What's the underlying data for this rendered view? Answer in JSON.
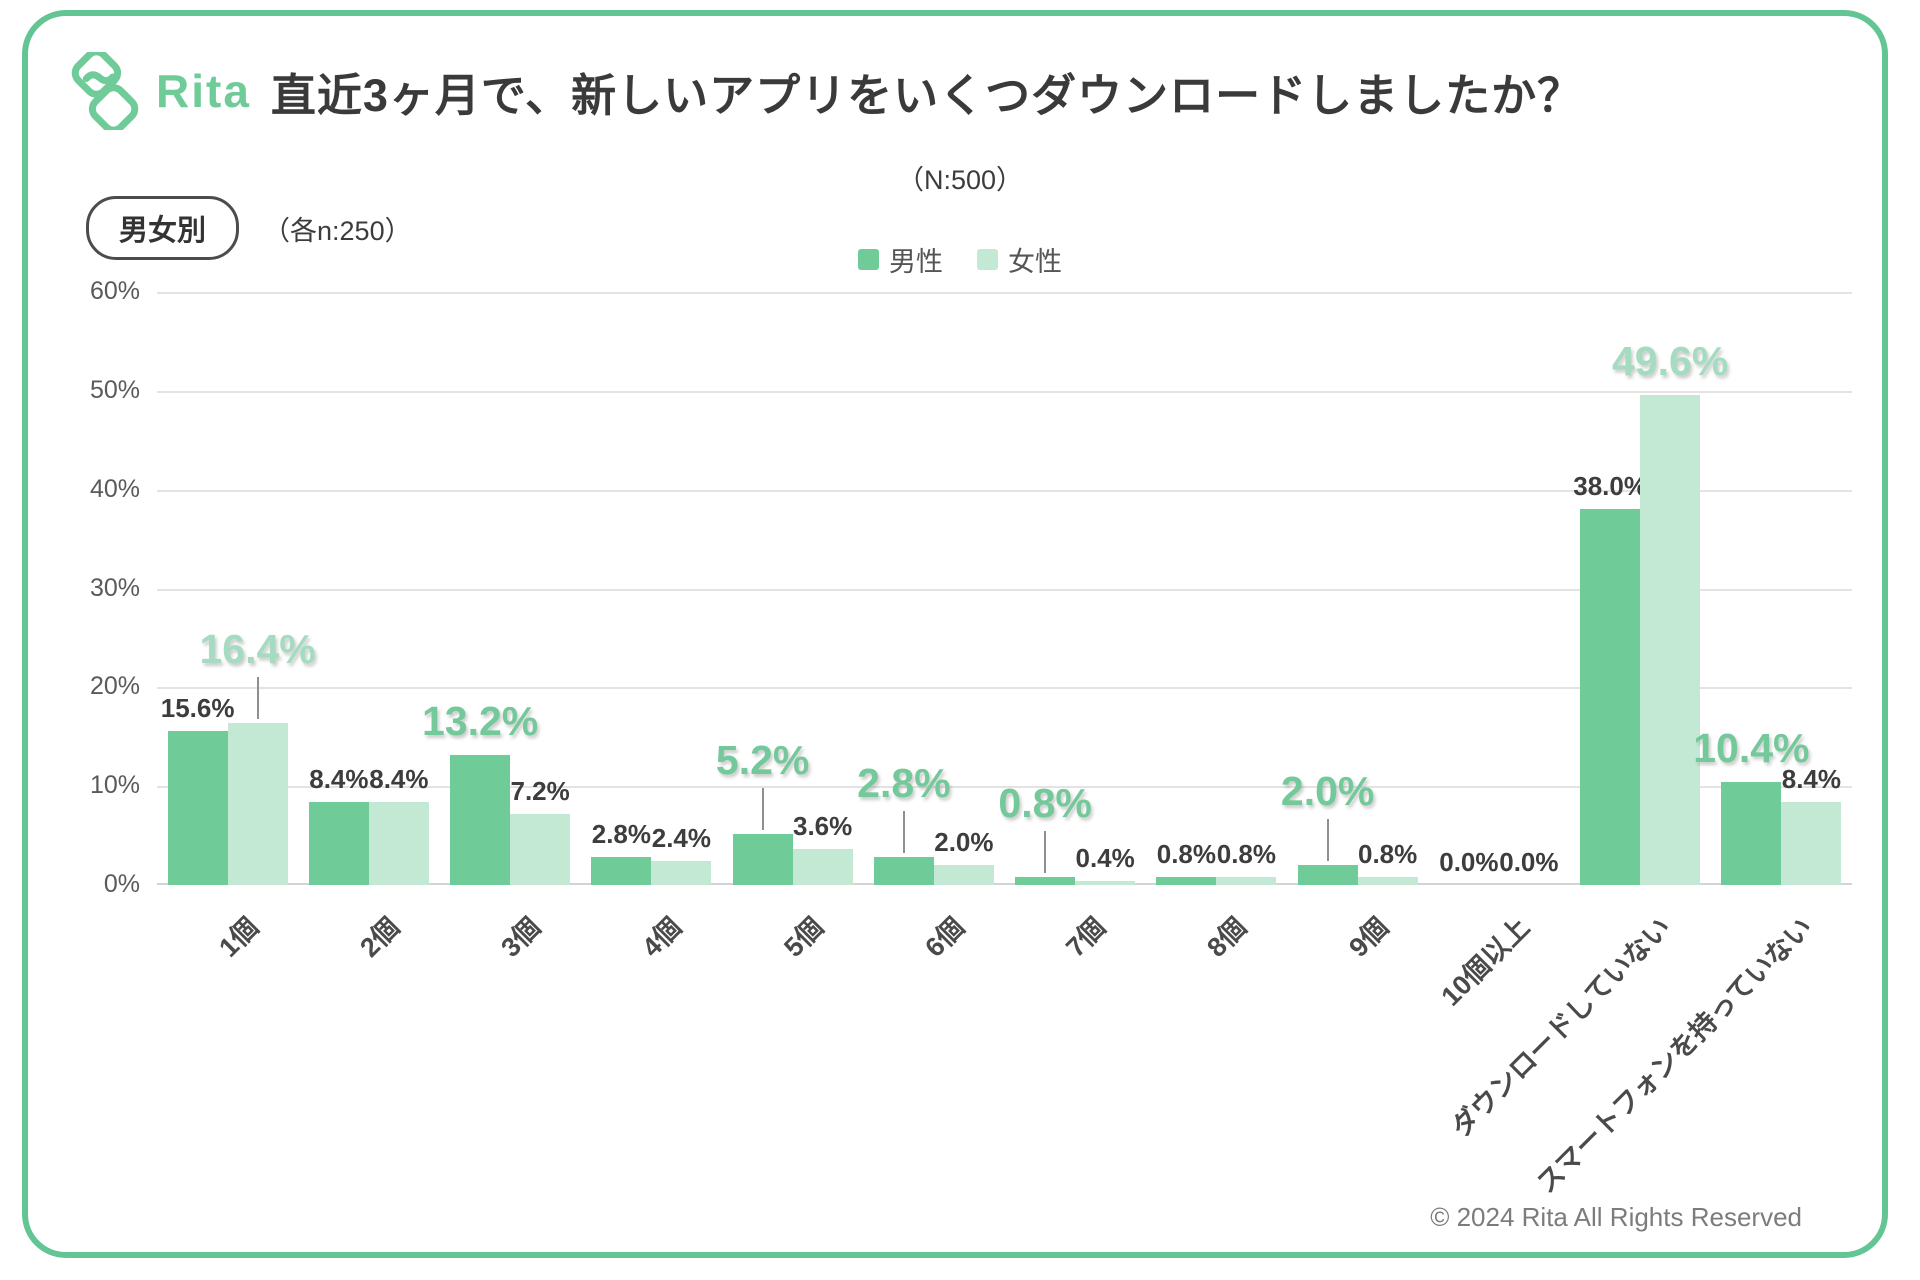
{
  "header": {
    "brand": "Rita",
    "title": "直近3ヶ月で、新しいアプリをいくつダウンロードしましたか？",
    "sample_note": "（N:500）"
  },
  "controls": {
    "segment_badge": "男女別",
    "per_group_note": "（各n:250）"
  },
  "legend": [
    {
      "label": "男性",
      "color": "#6fcb97"
    },
    {
      "label": "女性",
      "color": "#c3e8d3"
    }
  ],
  "footer": {
    "copyright": "© 2024 Rita All Rights Reserved"
  },
  "colors": {
    "card_border": "#63c594",
    "brand_green": "#6fcb97",
    "male_bar": "#6fcb97",
    "female_bar": "#c3e8d3",
    "male_emphasis_label": "#74c99b",
    "female_emphasis_label": "#a5dcc1",
    "normal_label": "#3d3d3d",
    "gridline": "#e3e3e3"
  },
  "chart_data": {
    "type": "bar",
    "title": "直近3ヶ月で、新しいアプリをいくつダウンロードしましたか？",
    "sample_size": "N:500",
    "per_group_n": "各n:250",
    "grid": true,
    "legend_position": "top-center",
    "ylim": [
      0,
      60
    ],
    "y_ticks": [
      "60%",
      "50%",
      "40%",
      "30%",
      "20%",
      "10%",
      "0%"
    ],
    "categories": [
      "1個",
      "2個",
      "3個",
      "4個",
      "5個",
      "6個",
      "7個",
      "8個",
      "9個",
      "10個以上",
      "ダウンロードしていない",
      "スマートフォンを持っていない"
    ],
    "series": [
      {
        "name": "男性",
        "color": "#6fcb97",
        "emphasis_color": "#74c99b",
        "values": [
          15.6,
          8.4,
          13.2,
          2.8,
          5.2,
          2.8,
          0.8,
          0.8,
          2.0,
          0.0,
          38.0,
          10.4
        ]
      },
      {
        "name": "女性",
        "color": "#c3e8d3",
        "emphasis_color": "#a5dcc1",
        "values": [
          16.4,
          8.4,
          7.2,
          2.4,
          3.6,
          2.0,
          0.4,
          0.8,
          0.8,
          0.0,
          49.6,
          8.4
        ]
      }
    ],
    "emphasis": [
      {
        "category": 0,
        "series_index": 1,
        "leader": true
      },
      {
        "category": 2,
        "series_index": 0,
        "leader": false
      },
      {
        "category": 4,
        "series_index": 0,
        "leader": true
      },
      {
        "category": 5,
        "series_index": 0,
        "leader": true
      },
      {
        "category": 6,
        "series_index": 0,
        "leader": true
      },
      {
        "category": 8,
        "series_index": 0,
        "leader": true
      },
      {
        "category": 10,
        "series_index": 1,
        "leader": false
      },
      {
        "category": 11,
        "series_index": 0,
        "leader": false
      }
    ]
  }
}
